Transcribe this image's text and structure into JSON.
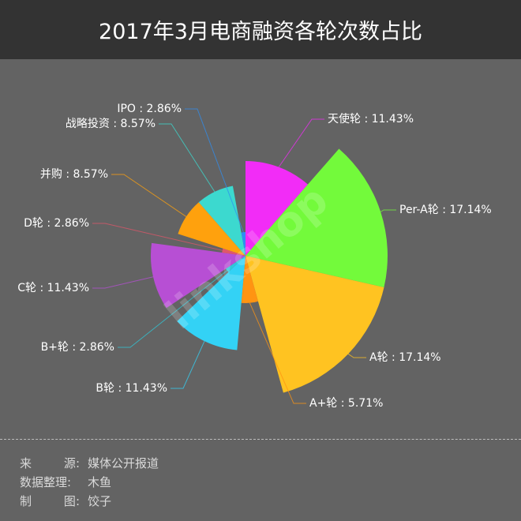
{
  "header": {
    "title": "2017年3月电商融资各轮次数占比"
  },
  "chart_data": {
    "type": "pie",
    "subtype": "rose (radius and angle proportional to value)",
    "title": "2017年3月电商融资各轮次数占比",
    "categories": [
      "天使轮",
      "Per-A轮",
      "A轮",
      "A+轮",
      "B轮",
      "B+轮",
      "C轮",
      "D轮",
      "并购",
      "战略投资",
      "IPO"
    ],
    "values": [
      11.43,
      17.14,
      17.14,
      5.71,
      11.43,
      2.86,
      11.43,
      2.86,
      8.57,
      8.57,
      2.86
    ],
    "unit": "%",
    "colors": [
      "#f22cf7",
      "#73fa3b",
      "#ffc321",
      "#ff9412",
      "#33d2f5",
      "#2fc8d8",
      "#b74fd4",
      "#e0566a",
      "#ffa10d",
      "#3cd9cf",
      "#2f8ef0"
    ],
    "labels": [
      "天使轮 : 11.43%",
      "Per-A轮 : 17.14%",
      "A轮 : 17.14%",
      "A+轮 : 5.71%",
      "B轮 : 11.43%",
      "B+轮 : 2.86%",
      "C轮 : 11.43%",
      "D轮 : 2.86%",
      "并购 : 8.57%",
      "战略投资 : 8.57%",
      "IPO : 2.86%"
    ],
    "start_angle": "12 o'clock, clockwise"
  },
  "watermark": "linkshop 联商网",
  "footer": {
    "rows": [
      {
        "key": [
          "来",
          "源"
        ],
        "value": "媒体公开报道"
      },
      {
        "key": [
          "数据整理"
        ],
        "value": "木鱼"
      },
      {
        "key": [
          "制",
          "图"
        ],
        "value": "饺子"
      }
    ]
  }
}
